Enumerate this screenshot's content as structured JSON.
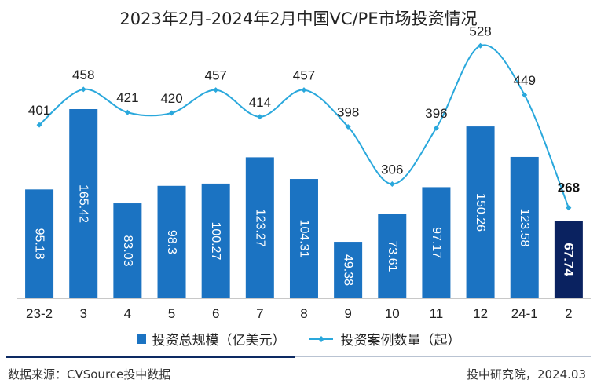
{
  "chart_data": {
    "type": "bar+line",
    "title": "2023年2月-2024年2月中国VC/PE市场投资情况",
    "categories": [
      "23-2",
      "3",
      "4",
      "5",
      "6",
      "7",
      "8",
      "9",
      "10",
      "11",
      "12",
      "24-1",
      "2"
    ],
    "series": [
      {
        "name": "投资总规模（亿美元）",
        "type": "bar",
        "values": [
          95.18,
          165.42,
          83.03,
          98.3,
          100.27,
          123.27,
          104.31,
          49.38,
          73.61,
          97.17,
          150.26,
          123.58,
          67.74
        ],
        "labels": [
          "95.18",
          "165.42",
          "83.03",
          "98.3",
          "100.27",
          "123.27",
          "104.31",
          "49.38",
          "73.61",
          "97.17",
          "150.26",
          "123.58",
          "67.74"
        ]
      },
      {
        "name": "投资案例数量（起）",
        "type": "line",
        "values": [
          401,
          458,
          421,
          420,
          457,
          414,
          457,
          398,
          306,
          396,
          528,
          449,
          268
        ],
        "labels": [
          "401",
          "458",
          "421",
          "420",
          "457",
          "414",
          "457",
          "398",
          "306",
          "396",
          "528",
          "449",
          "268"
        ]
      }
    ],
    "highlight_index": 12,
    "colors": {
      "bar": "#1b73c2",
      "bar_highlight": "#0a2260",
      "line": "#2aa8dc"
    }
  },
  "footer": {
    "source": "数据来源：CVSource投中数据",
    "credit": "投中研究院，2024.03"
  }
}
